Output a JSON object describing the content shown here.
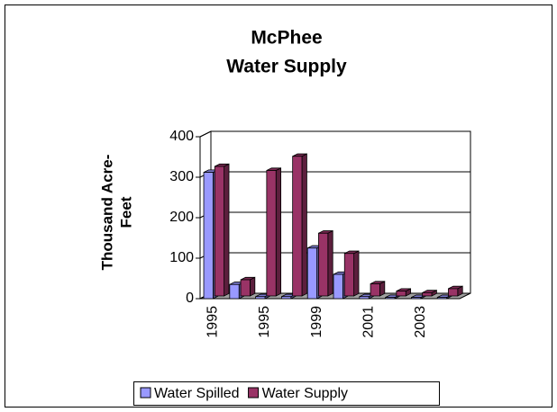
{
  "chart_data": {
    "type": "bar3d",
    "title": [
      "McPhee",
      "Water Supply"
    ],
    "ylabel": [
      "Thousand Acre-",
      "Feet"
    ],
    "categories": [
      "1995",
      null,
      "1995",
      null,
      "1999",
      null,
      "2001",
      null,
      "2003",
      null
    ],
    "series": [
      {
        "name": "Water Spilled",
        "color": "#9999ff",
        "values": [
          312,
          35,
          5,
          5,
          125,
          60,
          5,
          3,
          3,
          3
        ]
      },
      {
        "name": "Water Supply",
        "color": "#993366",
        "values": [
          320,
          40,
          310,
          345,
          155,
          105,
          30,
          12,
          8,
          18
        ]
      }
    ],
    "ylim": [
      0,
      400
    ],
    "yticks": [
      0,
      100,
      200,
      300,
      400
    ],
    "grid": true,
    "legend": "bottom"
  }
}
